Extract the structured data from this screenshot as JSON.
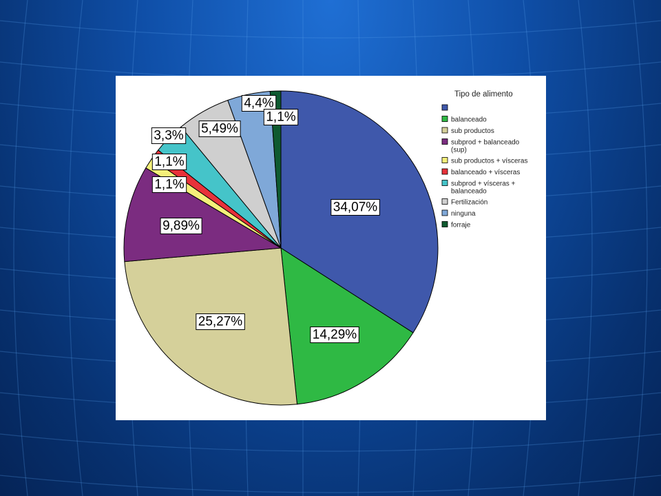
{
  "chart_data": {
    "type": "pie",
    "legend_title": "Tipo de alimento",
    "legend_placement": "right",
    "slices": [
      {
        "legend": "",
        "percent": 34.07,
        "label": "34,07%",
        "color": "#3f58ab"
      },
      {
        "legend": "balanceado",
        "percent": 14.29,
        "label": "14,29%",
        "color": "#2fb944"
      },
      {
        "legend": "sub productos",
        "percent": 25.27,
        "label": "25,27%",
        "color": "#d5d09a"
      },
      {
        "legend": "subprod + balanceado (sup)",
        "percent": 9.89,
        "label": "9,89%",
        "color": "#7b2c80"
      },
      {
        "legend": "sub productos + vísceras",
        "percent": 1.1,
        "label": "1,1%",
        "color": "#f5f07a"
      },
      {
        "legend": "balanceado + vísceras",
        "percent": 1.1,
        "label": "1,1%",
        "color": "#e8313a"
      },
      {
        "legend": "subprod + vísceras + balanceado",
        "percent": 3.3,
        "label": "3,3%",
        "color": "#45c4c9"
      },
      {
        "legend": "Fertilización",
        "percent": 5.49,
        "label": "5,49%",
        "color": "#cfcfcf"
      },
      {
        "legend": "ninguna",
        "percent": 4.4,
        "label": "4,4%",
        "color": "#7fa8d8"
      },
      {
        "legend": "forraje",
        "percent": 1.1,
        "label": "1,1%",
        "color": "#0f5a30"
      }
    ]
  }
}
